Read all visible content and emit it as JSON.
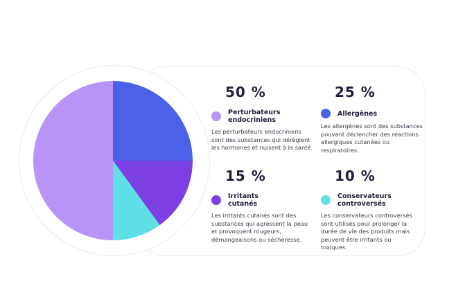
{
  "chart_data": {
    "type": "pie",
    "categories": [
      "Perturbateurs endocriniens",
      "Allergènes",
      "Irritants cutanés",
      "Conservateurs controversés"
    ],
    "values": [
      50,
      25,
      15,
      10
    ],
    "colors": [
      "#b794f6",
      "#4a62e8",
      "#7b3fe4",
      "#5ee0e6"
    ]
  },
  "legend": [
    {
      "percent": "50 %",
      "name": "Perturbateurs endocriniens",
      "description": "Les perturbateurs endocriniens sont des substances qui dérèglent les hormones et nuisent à la santé.",
      "color": "#b794f6"
    },
    {
      "percent": "25 %",
      "name": "Allergènes",
      "description": "Les allergènes sont des substances pouvant déclencher des réactions allergiques cutanées ou respiratoires.",
      "color": "#4a62e8"
    },
    {
      "percent": "15 %",
      "name": "Irritants cutanés",
      "description": "Les irritants cutanés sont des substances qui agressent la peau et provoquent rougeurs, démangeaisons ou sécheresse.",
      "color": "#7b3fe4"
    },
    {
      "percent": "10 %",
      "name": "Conservateurs controversés",
      "description": "Les conservateurs controversés sont utilisés pour prolonger la durée de vie des produits mais peuvent être irritants ou toxiques.",
      "color": "#5ee0e6"
    }
  ]
}
